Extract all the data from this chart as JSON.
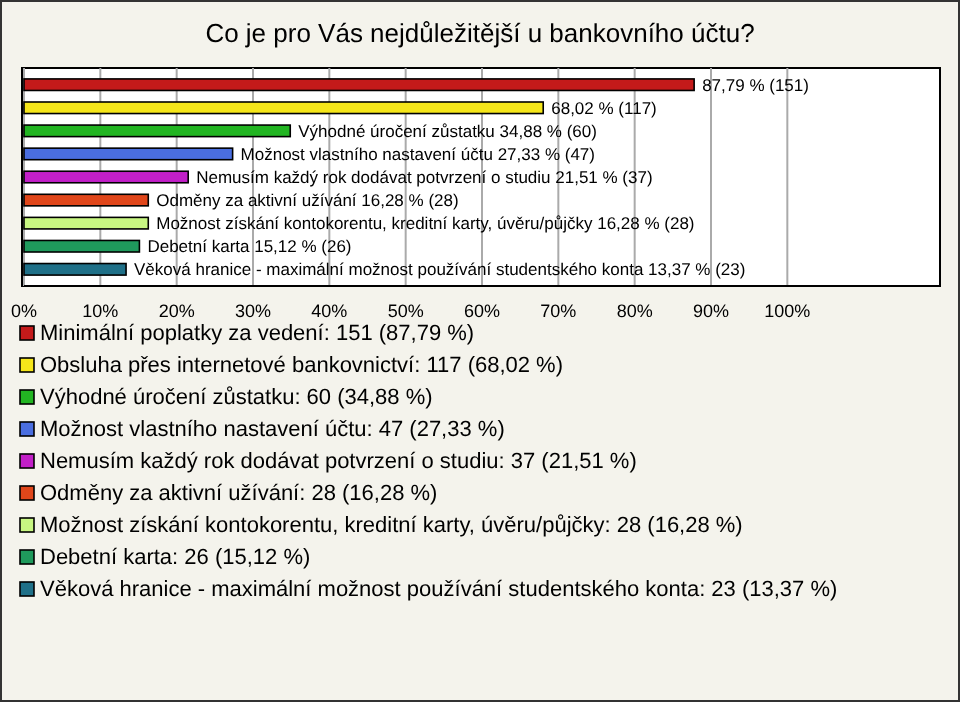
{
  "chart_data": {
    "type": "bar",
    "orientation": "horizontal",
    "title": "Co je pro Vás nejdůležitější u bankovního účtu?",
    "categories": [
      null
    ],
    "series": [
      {
        "name": "Minimální poplatky za vedení: 151 (87,79 %)",
        "color": "#c41a1a",
        "values": [
          87.79
        ],
        "value_labels": [
          "87,79 % (151)"
        ]
      },
      {
        "name": "Obsluha přes internetové bankovnictví: 117 (68,02 %)",
        "color": "#f5e61a",
        "values": [
          68.02
        ],
        "value_labels": [
          "68,02 % (117)"
        ]
      },
      {
        "name": "Výhodné úročení zůstatku: 60 (34,88 %)",
        "color": "#22b522",
        "values": [
          34.88
        ],
        "value_labels": [
          "Výhodné úročení zůstatku 34,88 % (60)"
        ]
      },
      {
        "name": "Možnost vlastního nastavení účtu: 47 (27,33 %)",
        "color": "#4a6ee0",
        "values": [
          27.33
        ],
        "value_labels": [
          "Možnost vlastního nastavení účtu 27,33 % (47)"
        ]
      },
      {
        "name": "Nemusím každý rok dodávat potvrzení o studiu: 37 (21,51 %)",
        "color": "#c21fc8",
        "values": [
          21.51
        ],
        "value_labels": [
          "Nemusím každý rok dodávat potvrzení o studiu 21,51 % (37)"
        ]
      },
      {
        "name": "Odměny za aktivní užívání: 28 (16,28 %)",
        "color": "#e0461a",
        "values": [
          16.28
        ],
        "value_labels": [
          "Odměny za aktivní užívání 16,28 % (28)"
        ]
      },
      {
        "name": "Možnost získání kontokorentu, kreditní karty, úvěru/půjčky: 28 (16,28 %)",
        "color": "#c8f782",
        "values": [
          16.28
        ],
        "value_labels": [
          "Možnost získání kontokorentu, kreditní karty, úvěru/půjčky 16,28 % (28)"
        ]
      },
      {
        "name": "Debetní karta: 26 (15,12 %)",
        "color": "#1f9a5c",
        "values": [
          15.12
        ],
        "value_labels": [
          "Debetní karta 15,12 % (26)"
        ]
      },
      {
        "name": "Věková hranice - maximální možnost používání studentského konta: 23 (13,37 %)",
        "color": "#1f7088",
        "values": [
          13.37
        ],
        "value_labels": [
          "Věková hranice - maximální možnost používání studentského konta 13,37 % (23)"
        ]
      }
    ],
    "xlim": [
      0,
      120
    ],
    "xticks": [
      {
        "value": 0,
        "label": "0%"
      },
      {
        "value": 10,
        "label": "10%"
      },
      {
        "value": 20,
        "label": "20%"
      },
      {
        "value": 30,
        "label": "30%"
      },
      {
        "value": 40,
        "label": "40%"
      },
      {
        "value": 50,
        "label": "50%"
      },
      {
        "value": 60,
        "label": "60%"
      },
      {
        "value": 70,
        "label": "70%"
      },
      {
        "value": 80,
        "label": "80%"
      },
      {
        "value": 90,
        "label": "90%"
      },
      {
        "value": 100,
        "label": "100%"
      }
    ],
    "grid": "x",
    "legend": "bottom",
    "tick_labels": "x"
  }
}
